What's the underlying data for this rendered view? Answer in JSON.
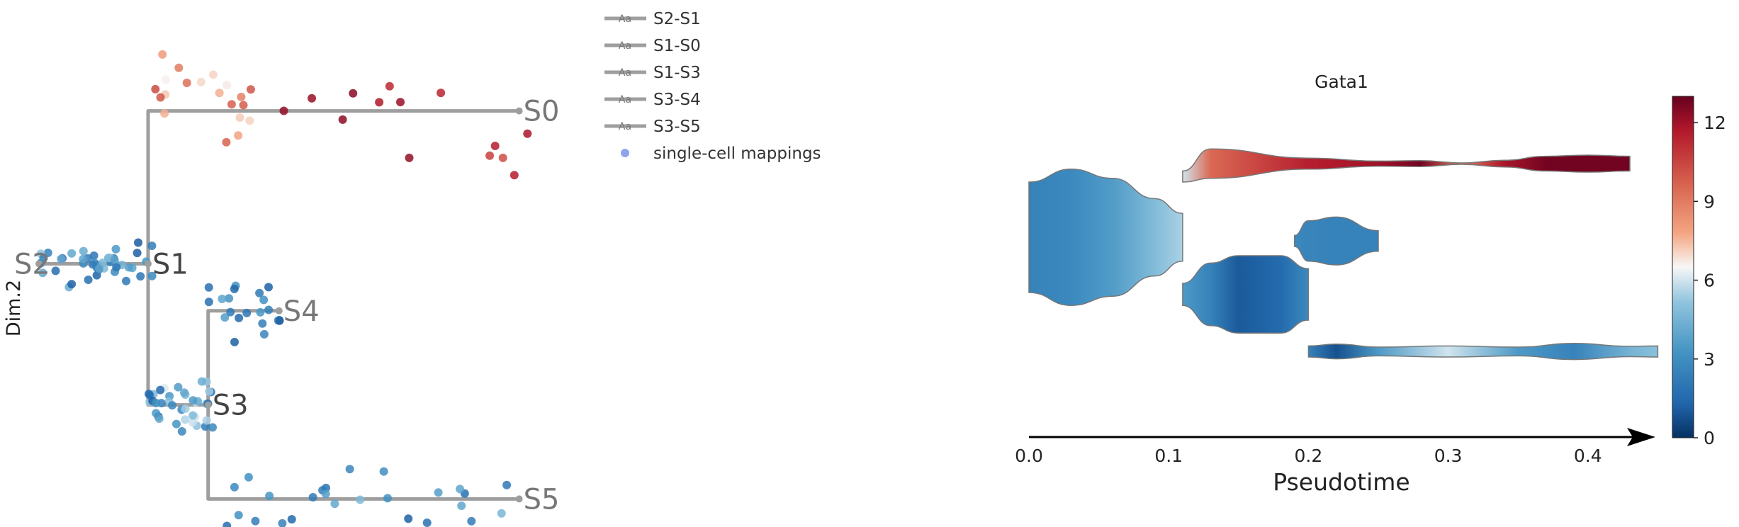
{
  "chart_data": [
    {
      "type": "scatter",
      "ylabel": "Dim.2",
      "grid": false,
      "legend": {
        "placement": "top-right outside",
        "marker_glyph": "Aa",
        "items": [
          "S2-S1",
          "S1-S0",
          "S1-S3",
          "S3-S4",
          "S3-S5"
        ],
        "points_label": "single-cell mappings"
      },
      "tree": {
        "nodes": [
          {
            "id": "S2",
            "label": "S2",
            "x": 0.0,
            "y": 0.6
          },
          {
            "id": "S1",
            "label": "S1",
            "x": 1.0,
            "y": 0.6
          },
          {
            "id": "S0",
            "label": "S0",
            "x": 4.4,
            "y": 1.9
          },
          {
            "id": "S3",
            "label": "S3",
            "x": 1.55,
            "y": -0.6
          },
          {
            "id": "S4",
            "label": "S4",
            "x": 2.2,
            "y": 0.2
          },
          {
            "id": "S5",
            "label": "S5",
            "x": 4.4,
            "y": -1.4
          }
        ],
        "edges": [
          {
            "name": "S2-S1",
            "path": [
              [
                0.0,
                0.6
              ],
              [
                1.0,
                0.6
              ]
            ]
          },
          {
            "name": "S1-S0",
            "path": [
              [
                1.0,
                0.6
              ],
              [
                1.0,
                1.9
              ],
              [
                4.4,
                1.9
              ]
            ]
          },
          {
            "name": "S1-S3",
            "path": [
              [
                1.0,
                0.6
              ],
              [
                1.0,
                -0.6
              ],
              [
                1.55,
                -0.6
              ]
            ]
          },
          {
            "name": "S3-S4",
            "path": [
              [
                1.55,
                -0.6
              ],
              [
                1.55,
                0.2
              ],
              [
                2.2,
                0.2
              ]
            ]
          },
          {
            "name": "S3-S5",
            "path": [
              [
                1.55,
                -0.6
              ],
              [
                1.55,
                -1.4
              ],
              [
                4.4,
                -1.4
              ]
            ]
          }
        ]
      },
      "colors": {
        "edge": "#9e9e9e",
        "label": "#777777",
        "label_dark": "#444444",
        "points_legend": "#8fa4ea"
      },
      "points_coloring": "Gata1 expression, blue (low) to red (high)"
    },
    {
      "type": "area",
      "title": "Gata1",
      "xlabel": "Pseudotime",
      "xlim": [
        0.0,
        0.45
      ],
      "xticks": [
        "0.0",
        "0.1",
        "0.2",
        "0.3",
        "0.4"
      ],
      "colorbar": {
        "min": 0,
        "max": 13,
        "ticks": [
          "0",
          "3",
          "6",
          "9",
          "12"
        ],
        "colormap": "RdBu_r"
      },
      "streams": [
        {
          "branch": "root",
          "t": [
            0.0,
            0.03,
            0.06,
            0.09,
            0.11
          ],
          "half_width": [
            1.5,
            1.85,
            1.6,
            1.05,
            0.65
          ],
          "center": [
            0.0,
            0.0,
            0.0,
            0.0,
            0.0
          ],
          "value": [
            2.5,
            2.8,
            3.6,
            4.8,
            5.5
          ]
        },
        {
          "branch": "upper",
          "t": [
            0.11,
            0.13,
            0.2,
            0.25,
            0.28,
            0.31,
            0.34,
            0.37,
            0.4,
            0.43
          ],
          "half_width": [
            0.15,
            0.4,
            0.15,
            0.07,
            0.08,
            0.02,
            0.09,
            0.2,
            0.23,
            0.2
          ],
          "center": [
            1.65,
            2.0,
            2.0,
            2.0,
            2.0,
            2.0,
            2.0,
            2.0,
            2.0,
            2.0
          ],
          "value": [
            6.0,
            9.5,
            11.5,
            12.0,
            12.8,
            9.0,
            11.8,
            12.8,
            12.8,
            12.8
          ]
        },
        {
          "branch": "lower",
          "t": [
            0.11,
            0.13,
            0.15,
            0.18,
            0.2
          ],
          "half_width": [
            0.3,
            0.85,
            1.05,
            1.05,
            0.7
          ],
          "center": [
            -1.55,
            -1.55,
            -1.55,
            -1.55,
            -1.55
          ],
          "value": [
            3.5,
            2.5,
            1.0,
            1.5,
            2.8
          ]
        },
        {
          "branch": "upper-sub",
          "t": [
            0.19,
            0.2,
            0.22,
            0.25
          ],
          "half_width": [
            0.15,
            0.55,
            0.65,
            0.28
          ],
          "center": [
            -0.1,
            -0.1,
            -0.1,
            -0.1
          ],
          "value": [
            2.8,
            2.6,
            2.5,
            2.5
          ]
        },
        {
          "branch": "lower-sub",
          "t": [
            0.2,
            0.22,
            0.25,
            0.3,
            0.35,
            0.39,
            0.43,
            0.45
          ],
          "half_width": [
            0.15,
            0.2,
            0.12,
            0.15,
            0.12,
            0.22,
            0.14,
            0.15
          ],
          "center": [
            -3.1,
            -3.1,
            -3.1,
            -3.1,
            -3.1,
            -3.1,
            -3.1,
            -3.1
          ],
          "value": [
            2.5,
            0.8,
            3.5,
            6.0,
            3.5,
            2.5,
            4.5,
            5.0
          ]
        }
      ]
    }
  ]
}
